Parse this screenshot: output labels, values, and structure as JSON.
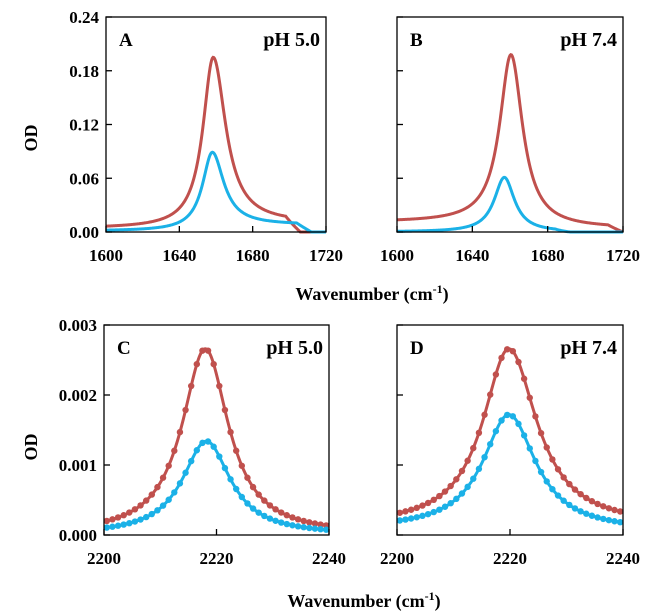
{
  "colors": {
    "red": "#C0504D",
    "blue": "#1BB1E7"
  },
  "axes": {
    "ylabel": "OD",
    "xlabel_top": "Wavenumber (cm",
    "xlabel_bottom": "Wavenumber (cm",
    "xlabel_sup": "-1",
    "xlabel_close": ")"
  },
  "chart_data": [
    {
      "type": "line",
      "panel": "A",
      "title": "pH 5.0",
      "xlim": [
        1600,
        1720
      ],
      "ylim": [
        0,
        0.24
      ],
      "xticks": [
        1600,
        1640,
        1680,
        1720
      ],
      "xtick_labels": [
        "1600",
        "1640",
        "1680",
        "1720"
      ],
      "yticks": [
        0,
        0.06,
        0.12,
        0.18,
        0.24
      ],
      "ytick_labels": [
        "0.00",
        "0.06",
        "0.12",
        "0.18",
        "0.24"
      ],
      "show_yticklabels": true,
      "series": [
        {
          "name": "red",
          "color": "red",
          "peak": 1658.5,
          "height": 0.195,
          "hwhm_left": 6.8,
          "hwhm_right": 8.2,
          "tail": [
            0.004,
            0.01
          ],
          "baseline_end": 1706
        },
        {
          "name": "blue",
          "color": "blue",
          "peak": 1658.0,
          "height": 0.089,
          "hwhm_left": 6.5,
          "hwhm_right": 7.5,
          "tail": [
            0.001,
            0.008
          ],
          "baseline_end": 1712
        }
      ]
    },
    {
      "type": "line",
      "panel": "B",
      "title": "pH 7.4",
      "xlim": [
        1600,
        1720
      ],
      "ylim": [
        0,
        0.24
      ],
      "xticks": [
        1600,
        1640,
        1680,
        1720
      ],
      "xtick_labels": [
        "1600",
        "1640",
        "1680",
        "1720"
      ],
      "yticks": [
        0,
        0.06,
        0.12,
        0.18,
        0.24
      ],
      "ytick_labels": [
        "0.00",
        "0.06",
        "0.12",
        "0.18",
        "0.24"
      ],
      "show_yticklabels": false,
      "series": [
        {
          "name": "red",
          "color": "red",
          "peak": 1660.5,
          "height": 0.198,
          "hwhm_left": 7.2,
          "hwhm_right": 7.5,
          "tail": [
            0.011,
            0.004
          ],
          "baseline_end": 1720
        },
        {
          "name": "blue",
          "color": "blue",
          "peak": 1657.0,
          "height": 0.061,
          "hwhm_left": 6.5,
          "hwhm_right": 6.5,
          "tail": [
            0.0,
            0.0
          ],
          "baseline_end": 1692
        }
      ]
    },
    {
      "type": "line+scatter",
      "panel": "C",
      "title": "pH 5.0",
      "xlim": [
        2200,
        2240
      ],
      "ylim": [
        0,
        0.003
      ],
      "xticks": [
        2200,
        2220,
        2240
      ],
      "xtick_labels": [
        "2200",
        "2220",
        "2240"
      ],
      "yticks": [
        0,
        0.001,
        0.002,
        0.003
      ],
      "ytick_labels": [
        "0.000",
        "0.001",
        "0.002",
        "0.003"
      ],
      "show_yticklabels": true,
      "series": [
        {
          "name": "red",
          "color": "red",
          "peak": 2218.0,
          "height": 0.00266,
          "hwhm_left": 5.0,
          "hwhm_right": 5.0,
          "tail": [
            0.0,
            0.0
          ],
          "points": true
        },
        {
          "name": "blue",
          "color": "blue",
          "peak": 2218.2,
          "height": 0.00134,
          "hwhm_left": 5.2,
          "hwhm_right": 5.2,
          "tail": [
            0.0,
            0.0
          ],
          "points": true
        }
      ]
    },
    {
      "type": "line+scatter",
      "panel": "D",
      "title": "pH 7.4",
      "xlim": [
        2200,
        2240
      ],
      "ylim": [
        0,
        0.003
      ],
      "xticks": [
        2200,
        2220,
        2240
      ],
      "xtick_labels": [
        "2200",
        "2220",
        "2240"
      ],
      "yticks": [
        0,
        0.001,
        0.002,
        0.003
      ],
      "ytick_labels": [
        "0.000",
        "0.001",
        "0.002",
        "0.003"
      ],
      "show_yticklabels": false,
      "series": [
        {
          "name": "red",
          "color": "red",
          "peak": 2219.8,
          "height": 0.00266,
          "hwhm_left": 5.6,
          "hwhm_right": 6.0,
          "tail": [
            0.00012,
            0.00012
          ],
          "points": true
        },
        {
          "name": "blue",
          "color": "blue",
          "peak": 2219.8,
          "height": 0.00172,
          "hwhm_left": 5.6,
          "hwhm_right": 5.8,
          "tail": [
            8e-05,
            5e-05
          ],
          "points": true
        }
      ]
    }
  ]
}
